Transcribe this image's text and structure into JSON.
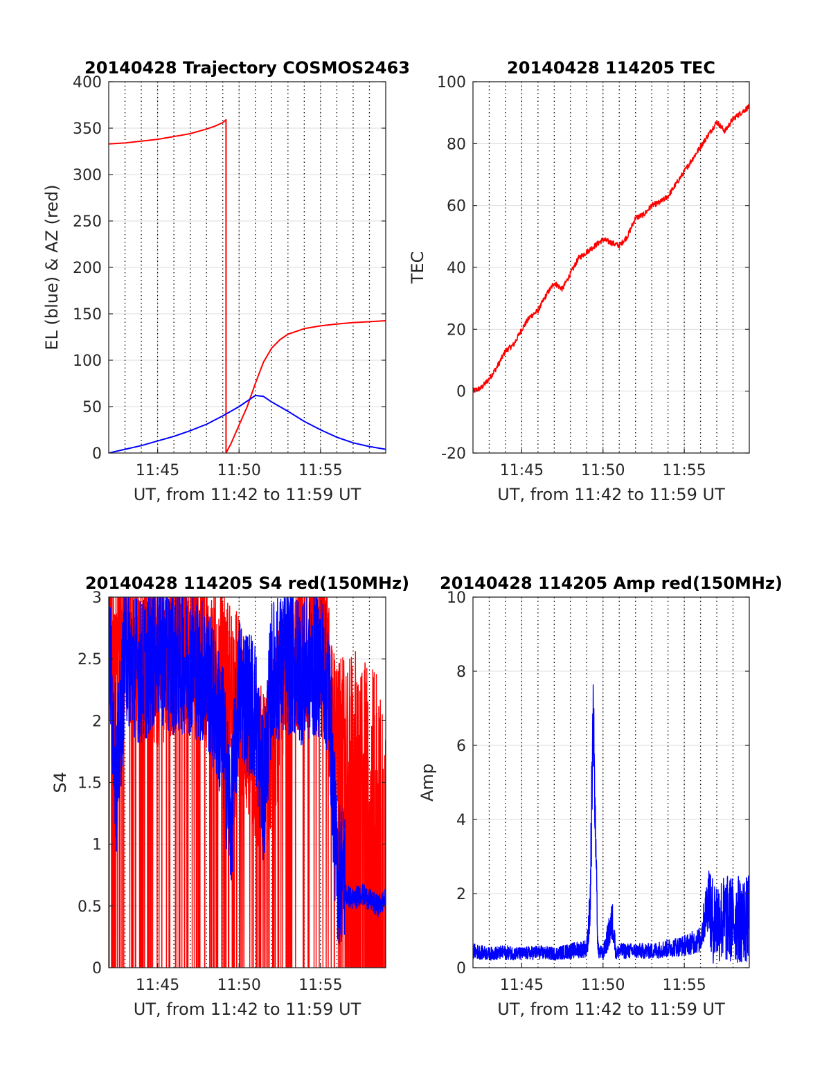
{
  "colors": {
    "red": "#ff0000",
    "blue": "#0000ff",
    "grid": "#dcdcdc",
    "axis": "#262626"
  },
  "chart_data": [
    {
      "id": "trajectory",
      "type": "line",
      "title": "20140428 Trajectory COSMOS2463",
      "xlabel": "UT, from 11:42 to 11:59 UT",
      "ylabel": "EL (blue) & AZ (red)",
      "xlim": [
        702,
        719
      ],
      "ylim": [
        0,
        400
      ],
      "yticks": [
        0,
        50,
        100,
        150,
        200,
        250,
        300,
        350,
        400
      ],
      "xticks": [
        {
          "value": 705,
          "label": "11:45"
        },
        {
          "value": 710,
          "label": "11:50"
        },
        {
          "value": 715,
          "label": "11:55"
        }
      ],
      "grid": true,
      "series": [
        {
          "color": "red",
          "x": [
            702,
            703,
            704,
            705,
            706,
            707,
            708,
            708.5,
            709.0,
            709.2,
            709.2,
            709.5,
            710.0,
            710.5,
            711.0,
            711.5,
            712.0,
            712.5,
            713.0,
            714.0,
            715.0,
            716.0,
            717.0,
            718.0,
            719.0
          ],
          "y": [
            333,
            334,
            336,
            338,
            341,
            344,
            349,
            352,
            356,
            359,
            0,
            10,
            30,
            50,
            75,
            98,
            113,
            122,
            128,
            134,
            137,
            139,
            140.5,
            141.5,
            142.5
          ]
        },
        {
          "color": "blue",
          "x": [
            702,
            703,
            704,
            705,
            706,
            707,
            708,
            709,
            710,
            710.5,
            711,
            711.5,
            712,
            713,
            714,
            715,
            716,
            717,
            718,
            719
          ],
          "y": [
            0,
            4,
            8,
            13,
            18,
            24,
            31,
            40,
            50,
            56,
            62,
            61,
            55,
            45,
            34,
            25,
            17,
            11,
            7,
            4
          ]
        }
      ]
    },
    {
      "id": "tec",
      "type": "line",
      "title": "20140428 114205 TEC",
      "xlabel": "UT, from 11:42 to 11:59 UT",
      "ylabel": "TEC",
      "xlim": [
        702,
        719
      ],
      "ylim": [
        -20,
        100
      ],
      "yticks": [
        -20,
        0,
        20,
        40,
        60,
        80,
        100
      ],
      "xticks": [
        {
          "value": 705,
          "label": "11:45"
        },
        {
          "value": 710,
          "label": "11:50"
        },
        {
          "value": 715,
          "label": "11:55"
        }
      ],
      "grid": true,
      "series": [
        {
          "color": "red",
          "x": [
            702,
            702.5,
            703,
            703.5,
            704,
            704.5,
            705,
            705.5,
            706,
            706.5,
            707,
            707.5,
            708,
            708.5,
            709,
            709.5,
            710,
            710.5,
            711,
            711.5,
            712,
            712.5,
            713,
            713.5,
            714,
            714.5,
            715,
            715.5,
            716,
            716.5,
            717,
            717.5,
            718,
            718.5,
            719
          ],
          "y": [
            0,
            1,
            4,
            8,
            13,
            15,
            20,
            24,
            26,
            31,
            35,
            33,
            38,
            43,
            45,
            47,
            49,
            48,
            47,
            50,
            56,
            57,
            60,
            61,
            63,
            67,
            71,
            75,
            79,
            83,
            87,
            84,
            88,
            90,
            92
          ]
        }
      ]
    },
    {
      "id": "s4",
      "type": "line",
      "title": "20140428 114205 S4 red(150MHz)",
      "xlabel": "UT, from 11:42 to 11:59 UT",
      "ylabel": "S4",
      "xlim": [
        702,
        719
      ],
      "ylim": [
        0,
        3
      ],
      "yticks": [
        0,
        0.5,
        1,
        1.5,
        2,
        2.5,
        3
      ],
      "xticks": [
        {
          "value": 705,
          "label": "11:45"
        },
        {
          "value": 710,
          "label": "11:50"
        },
        {
          "value": 715,
          "label": "11:55"
        }
      ],
      "grid": true,
      "series": [
        {
          "color": "red",
          "x": [
            702,
            703,
            704,
            705,
            706,
            707,
            708,
            709,
            710,
            710.5,
            711,
            711.5,
            712,
            713,
            714,
            715,
            716,
            717,
            718,
            719
          ],
          "y": [
            2.3,
            2.4,
            2.3,
            2.2,
            2.3,
            2.4,
            2.2,
            2.1,
            1.9,
            1.6,
            1.4,
            1.3,
            1.5,
            2.2,
            2.4,
            2.5,
            1.5,
            1.6,
            1.5,
            1.5
          ]
        },
        {
          "color": "blue",
          "x": [
            702,
            702.5,
            703,
            703.5,
            704,
            705,
            706,
            707,
            708,
            709,
            709.5,
            710,
            710.5,
            711,
            711.5,
            712,
            713,
            714,
            715,
            715.5,
            716,
            716.5,
            717,
            717.5,
            718,
            718.5,
            719
          ],
          "y": [
            2.5,
            1.3,
            2.4,
            2.3,
            2.2,
            2.4,
            2.3,
            2.3,
            2.2,
            1.7,
            1.0,
            2.1,
            2.0,
            1.9,
            1.2,
            2.2,
            2.3,
            2.2,
            2.3,
            2.1,
            0.6,
            0.6,
            0.55,
            0.6,
            0.55,
            0.5,
            0.55
          ]
        }
      ]
    },
    {
      "id": "amp",
      "type": "line",
      "title": "20140428 114205 Amp red(150MHz)",
      "xlabel": "UT, from 11:42 to 11:59 UT",
      "ylabel": "Amp",
      "xlim": [
        702,
        719
      ],
      "ylim": [
        0,
        10
      ],
      "yticks": [
        0,
        2,
        4,
        6,
        8,
        10
      ],
      "xticks": [
        {
          "value": 705,
          "label": "11:45"
        },
        {
          "value": 710,
          "label": "11:50"
        },
        {
          "value": 715,
          "label": "11:55"
        }
      ],
      "grid": true,
      "series": [
        {
          "color": "blue",
          "x": [
            702,
            703,
            704,
            705,
            706,
            707,
            708,
            709,
            709.2,
            709.4,
            709.55,
            709.7,
            710,
            710.6,
            710.8,
            711,
            712,
            713,
            714,
            715,
            715.5,
            716,
            716.5,
            716.7,
            717,
            718,
            718.5,
            719
          ],
          "y": [
            0.6,
            0.5,
            0.55,
            0.5,
            0.55,
            0.5,
            0.6,
            0.7,
            2.0,
            8.0,
            4.0,
            0.6,
            0.5,
            1.7,
            0.5,
            0.6,
            0.6,
            0.6,
            0.7,
            0.8,
            0.9,
            1.0,
            2.6,
            2.5,
            2.7,
            2.6,
            2.9,
            2.3
          ]
        }
      ]
    }
  ]
}
